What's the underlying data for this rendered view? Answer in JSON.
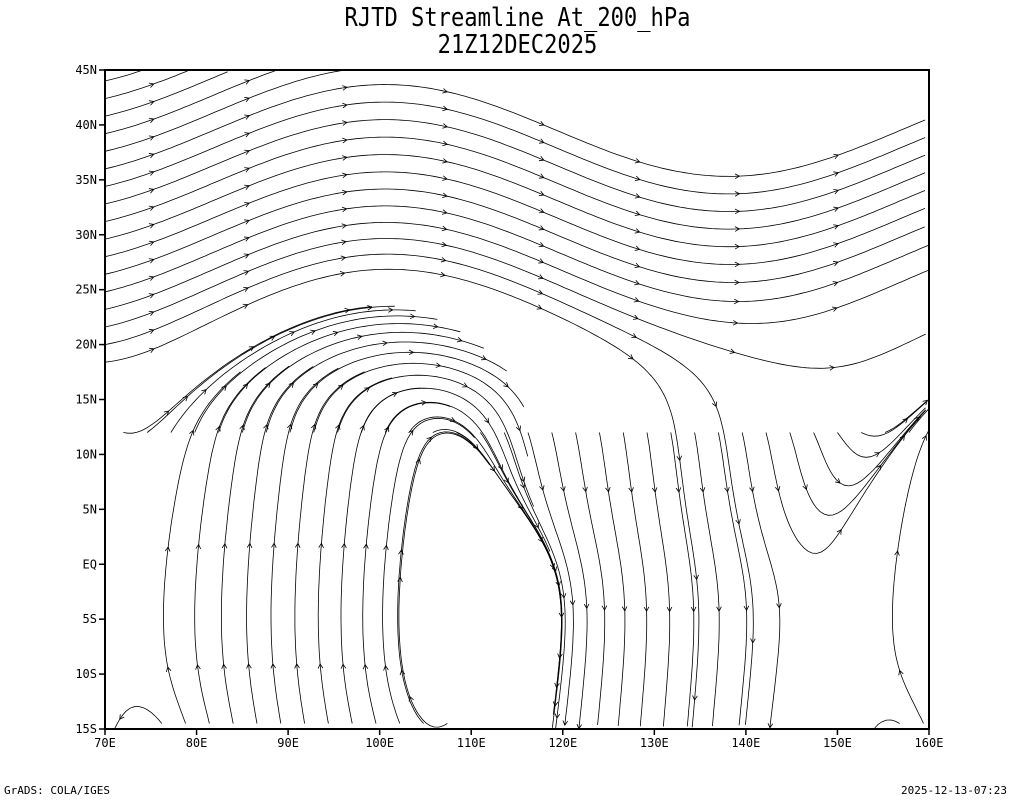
{
  "title": "RJTD Streamline At_200_hPa",
  "subtitle": "21Z12DEC2025",
  "map": {
    "projection": "lat-lon",
    "lon_range": [
      70,
      160
    ],
    "lat_range": [
      -15,
      45
    ],
    "x_ticks": [
      "70E",
      "80E",
      "90E",
      "100E",
      "110E",
      "120E",
      "130E",
      "140E",
      "150E",
      "160E"
    ],
    "y_ticks": [
      "45N",
      "40N",
      "35N",
      "30N",
      "25N",
      "20N",
      "15N",
      "10N",
      "5N",
      "EQ",
      "5S",
      "10S",
      "15S"
    ],
    "line_color": "#000000"
  },
  "footer": {
    "left": "GrADS: COLA/IGES",
    "right": "2025-12-13-07:23"
  }
}
